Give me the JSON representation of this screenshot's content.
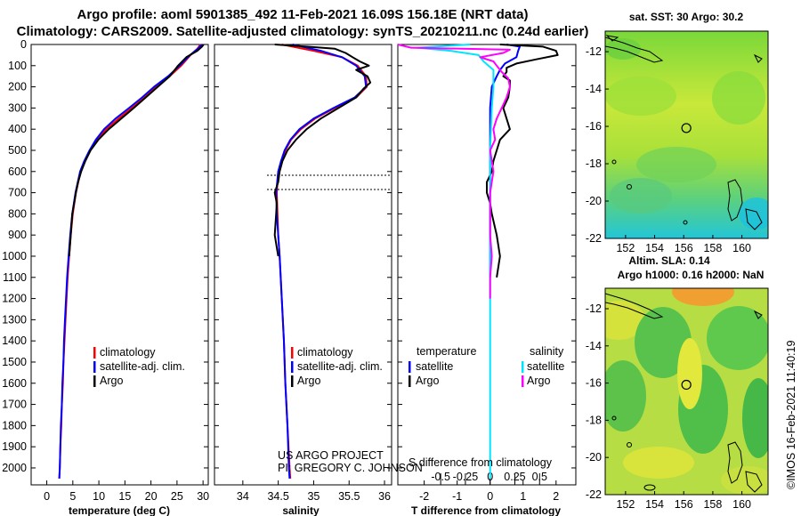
{
  "header": {
    "title_line1": "Argo profile: aoml 5901385_492 11-Feb-2021 16.09S 156.18E (NRT data)",
    "title_line2": "Climatology: CARS2009. Satellite-adjusted climatology: synTS_20210211.nc (0.24d earlier)"
  },
  "colors": {
    "climatology": "#ff0000",
    "satellite": "#0000ff",
    "argo": "#000000",
    "sal_satellite": "#00e5ff",
    "sal_argo": "#ff00ff"
  },
  "chart_data": [
    {
      "type": "line",
      "id": "temperature",
      "xlabel": "temperature (deg C)",
      "ylabel": "",
      "xlim": [
        -3,
        31
      ],
      "ylim": [
        2080,
        0
      ],
      "xticks": [
        0,
        5,
        10,
        15,
        20,
        25,
        30
      ],
      "xtick_labels": [
        "0",
        "5",
        "10",
        "15",
        "20",
        "25",
        "30"
      ],
      "yticks": [
        0,
        100,
        200,
        300,
        400,
        500,
        600,
        700,
        800,
        900,
        1000,
        1100,
        1200,
        1300,
        1400,
        1500,
        1600,
        1700,
        1800,
        1900,
        2000
      ],
      "ytick_labels": [
        "0",
        "100",
        "200",
        "300",
        "400",
        "500",
        "600",
        "700",
        "800",
        "900",
        "1000",
        "1100",
        "1200",
        "1300",
        "1400",
        "1500",
        "1600",
        "1700",
        "1800",
        "1900",
        "2000"
      ],
      "legend": [
        "climatology",
        "satellite-adj. clim.",
        "Argo"
      ],
      "series": [
        {
          "name": "climatology",
          "color": "#ff0000",
          "depth": [
            0,
            20,
            50,
            100,
            150,
            200,
            250,
            300,
            350,
            400,
            450,
            500,
            550,
            600,
            700,
            800,
            900,
            1000,
            1100,
            1200,
            1300,
            1400,
            1500,
            1600,
            1700,
            1800,
            1900,
            2000,
            2050
          ],
          "values": [
            29.5,
            28.9,
            27.6,
            25.8,
            23.6,
            21.0,
            18.8,
            16.3,
            13.8,
            11.4,
            9.7,
            8.4,
            7.3,
            6.5,
            5.6,
            5.0,
            4.6,
            4.3,
            4.0,
            3.8,
            3.6,
            3.4,
            3.2,
            3.1,
            2.9,
            2.8,
            2.6,
            2.5,
            2.4
          ]
        },
        {
          "name": "satellite-adj. clim.",
          "color": "#0000ff",
          "depth": [
            0,
            20,
            50,
            100,
            150,
            200,
            250,
            300,
            350,
            400,
            450,
            500,
            550,
            600,
            700,
            800,
            900,
            1000,
            1100,
            1200,
            1300,
            1400,
            1500,
            1600,
            1700,
            1800,
            1900,
            2000,
            2050
          ],
          "values": [
            29.8,
            29.0,
            27.5,
            25.5,
            23.3,
            20.6,
            18.3,
            15.8,
            13.2,
            11.0,
            9.4,
            8.2,
            7.2,
            6.4,
            5.5,
            4.9,
            4.5,
            4.2,
            3.9,
            3.7,
            3.5,
            3.3,
            3.2,
            3.0,
            2.9,
            2.7,
            2.6,
            2.5,
            2.4
          ]
        },
        {
          "name": "Argo",
          "color": "#000000",
          "depth": [
            0,
            10,
            30,
            60,
            100,
            150,
            200,
            250,
            300,
            350,
            400,
            450,
            500,
            550,
            600,
            650,
            700,
            800,
            900,
            1000
          ],
          "values": [
            30.1,
            29.8,
            28.9,
            26.8,
            25.2,
            23.6,
            21.3,
            19.0,
            16.7,
            14.3,
            11.9,
            9.9,
            8.4,
            7.4,
            6.6,
            6.0,
            5.6,
            4.9,
            4.6,
            4.3
          ]
        }
      ]
    },
    {
      "type": "line",
      "id": "salinity",
      "xlabel": "salinity",
      "ylabel": "",
      "xlim": [
        33.6,
        36.1
      ],
      "ylim": [
        2080,
        0
      ],
      "xticks": [
        34,
        34.5,
        35,
        35.5,
        36
      ],
      "xtick_labels": [
        "34",
        "34.5",
        "35",
        "35.5",
        "36"
      ],
      "legend": [
        "climatology",
        "satellite-adj. clim.",
        "Argo"
      ],
      "annotation": [
        "US ARGO PROJECT",
        "PI: GREGORY C. JOHNSON"
      ],
      "series": [
        {
          "name": "climatology",
          "color": "#ff0000",
          "depth": [
            0,
            30,
            60,
            100,
            150,
            200,
            250,
            300,
            350,
            400,
            450,
            500,
            550,
            600,
            700,
            800,
            900,
            1000,
            1200,
            1400,
            1600,
            1800,
            2000,
            2050
          ],
          "values": [
            34.55,
            35.0,
            35.4,
            35.62,
            35.74,
            35.75,
            35.6,
            35.3,
            35.02,
            34.82,
            34.68,
            34.6,
            34.55,
            34.5,
            34.48,
            34.49,
            34.5,
            34.52,
            34.55,
            34.58,
            34.6,
            34.63,
            34.66,
            34.67
          ]
        },
        {
          "name": "satellite-adj. clim.",
          "color": "#0000ff",
          "depth": [
            0,
            30,
            60,
            100,
            150,
            200,
            250,
            300,
            350,
            400,
            450,
            500,
            550,
            600,
            700,
            800,
            900,
            1000,
            1200,
            1400,
            1600,
            1800,
            2000,
            2050
          ],
          "values": [
            34.7,
            35.1,
            35.4,
            35.6,
            35.72,
            35.74,
            35.58,
            35.28,
            35.0,
            34.8,
            34.67,
            34.59,
            34.54,
            34.5,
            34.47,
            34.48,
            34.5,
            34.52,
            34.55,
            34.58,
            34.6,
            34.63,
            34.65,
            34.66
          ]
        },
        {
          "name": "Argo",
          "color": "#000000",
          "depth": [
            0,
            10,
            20,
            40,
            60,
            80,
            100,
            120,
            150,
            180,
            210,
            250,
            300,
            350,
            400,
            450,
            500,
            550,
            600,
            650,
            700,
            750,
            800,
            850,
            900,
            1000
          ],
          "values": [
            34.45,
            34.9,
            35.3,
            35.45,
            35.55,
            35.65,
            35.78,
            35.6,
            35.76,
            35.8,
            35.7,
            35.6,
            35.35,
            35.1,
            34.9,
            34.75,
            34.63,
            34.56,
            34.52,
            34.5,
            34.45,
            34.48,
            34.47,
            34.46,
            34.45,
            34.5
          ]
        }
      ]
    },
    {
      "type": "line",
      "id": "difference",
      "xlabel": "T difference from climatology",
      "xlabel_top": "S difference from climatology",
      "xlim": [
        -2.8,
        2.6
      ],
      "ylim": [
        2080,
        0
      ],
      "xticks": [
        -2,
        -1,
        0,
        1,
        2
      ],
      "xtick_labels": [
        "-2",
        "-1",
        "0",
        "1",
        "2"
      ],
      "xticks_top": [
        -1.5,
        -0.75,
        0.0,
        0.75,
        1.5
      ],
      "xtick_labels_top": [
        "-0.5",
        "-0.25",
        "0",
        "0.25",
        "0.5"
      ],
      "legend": {
        "temperature": [
          "satellite",
          "Argo"
        ],
        "salinity": [
          "satellite",
          "Argo"
        ]
      },
      "legend_headers": [
        "temperature",
        "salinity"
      ],
      "series": [
        {
          "name": "temperature satellite",
          "color": "#0000ff",
          "depth": [
            0,
            10,
            30,
            60,
            90,
            120,
            150,
            200,
            300,
            500,
            800,
            1100
          ],
          "values": [
            0.5,
            0.9,
            0.85,
            0.8,
            0.45,
            0.3,
            0.2,
            0.05,
            0.0,
            0.0,
            0.0,
            0.0
          ]
        },
        {
          "name": "temperature Argo",
          "color": "#000000",
          "depth": [
            0,
            10,
            30,
            50,
            70,
            90,
            110,
            130,
            150,
            170,
            200,
            250,
            300,
            350,
            400,
            450,
            500,
            550,
            600,
            650,
            700,
            750,
            800,
            900,
            1000,
            1100
          ],
          "values": [
            0.3,
            1.6,
            2.0,
            2.05,
            1.4,
            0.8,
            0.5,
            0.5,
            0.4,
            0.6,
            0.6,
            0.55,
            0.4,
            0.5,
            0.6,
            0.3,
            0.2,
            0.1,
            0.05,
            -0.1,
            -0.1,
            0.0,
            0.05,
            0.2,
            0.3,
            0.2
          ]
        },
        {
          "name": "salinity satellite",
          "color": "#00e5ff",
          "depth": [
            0,
            15,
            30,
            50,
            80,
            120,
            200,
            300,
            500,
            800,
            1100,
            1500,
            1800,
            2000,
            2050
          ],
          "values": [
            -0.6,
            -2.2,
            -1.2,
            -0.35,
            -0.2,
            0.1,
            0.1,
            0.05,
            0.0,
            0.0,
            0.0,
            0.0,
            0.0,
            0.0,
            0.0
          ]
        },
        {
          "name": "salinity Argo",
          "color": "#ff00ff",
          "depth": [
            0,
            15,
            25,
            40,
            60,
            80,
            100,
            130,
            160,
            200,
            250,
            300,
            350,
            400,
            450,
            500,
            600,
            700,
            800,
            900,
            1000,
            1100,
            1200
          ],
          "values": [
            -2.8,
            -2.4,
            0.6,
            0.4,
            -0.3,
            0.1,
            0.2,
            0.35,
            0.55,
            0.6,
            0.5,
            0.35,
            0.2,
            0.1,
            0.15,
            0.0,
            0.1,
            0.0,
            0.0,
            0.0,
            0.05,
            0.0,
            0.0
          ]
        }
      ]
    },
    {
      "type": "heatmap",
      "id": "sst_map",
      "title": "sat. SST: 30 Argo: 30.2",
      "xlim": [
        150.6,
        161.8
      ],
      "ylim": [
        -22,
        -10.9
      ],
      "xticks": [
        152,
        154,
        156,
        158,
        160
      ],
      "xtick_labels": [
        "152",
        "154",
        "156",
        "158",
        "160"
      ],
      "yticks": [
        -12,
        -14,
        -16,
        -18,
        -20,
        -22
      ],
      "ytick_labels": [
        "-12",
        "-14",
        "-16",
        "-18",
        "-20",
        "-22"
      ],
      "argo_position": {
        "lon": 156.18,
        "lat": -16.09
      }
    },
    {
      "type": "heatmap",
      "id": "sla_map",
      "title": "Altim. SLA: 0.14",
      "subtitle": "Argo h1000: 0.16 h2000: NaN",
      "xlim": [
        150.6,
        161.8
      ],
      "ylim": [
        -22,
        -10.9
      ],
      "xticks": [
        152,
        154,
        156,
        158,
        160
      ],
      "xtick_labels": [
        "152",
        "154",
        "156",
        "158",
        "160"
      ],
      "yticks": [
        -12,
        -14,
        -16,
        -18,
        -20,
        -22
      ],
      "ytick_labels": [
        "-12",
        "-14",
        "-16",
        "-18",
        "-20",
        "-22"
      ],
      "argo_position": {
        "lon": 156.18,
        "lat": -16.09
      }
    }
  ],
  "footer": {
    "credit": "©IMOS 16-Feb-2021 11:40:19"
  }
}
